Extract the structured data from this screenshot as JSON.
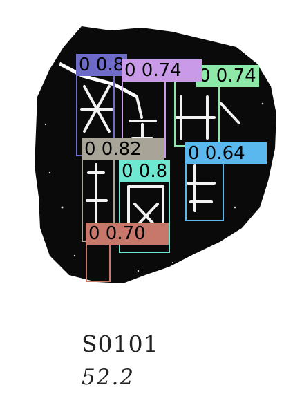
{
  "detections": [
    {
      "label": "0 0.8",
      "color": "#6e6ac8"
    },
    {
      "label": "0 0.74",
      "color": "#c89ae8"
    },
    {
      "label": "0 0.74",
      "color": "#8ee8a8"
    },
    {
      "label": "0 0.82",
      "color": "#a8a498"
    },
    {
      "label": "0 0.64",
      "color": "#5ab8ee"
    },
    {
      "label": "0 0.8",
      "color": "#6ee8d0"
    },
    {
      "label": "0 0.70",
      "color": "#c8786a"
    }
  ],
  "caption": {
    "catalog_id": "S0101",
    "measurement": "52.2"
  }
}
